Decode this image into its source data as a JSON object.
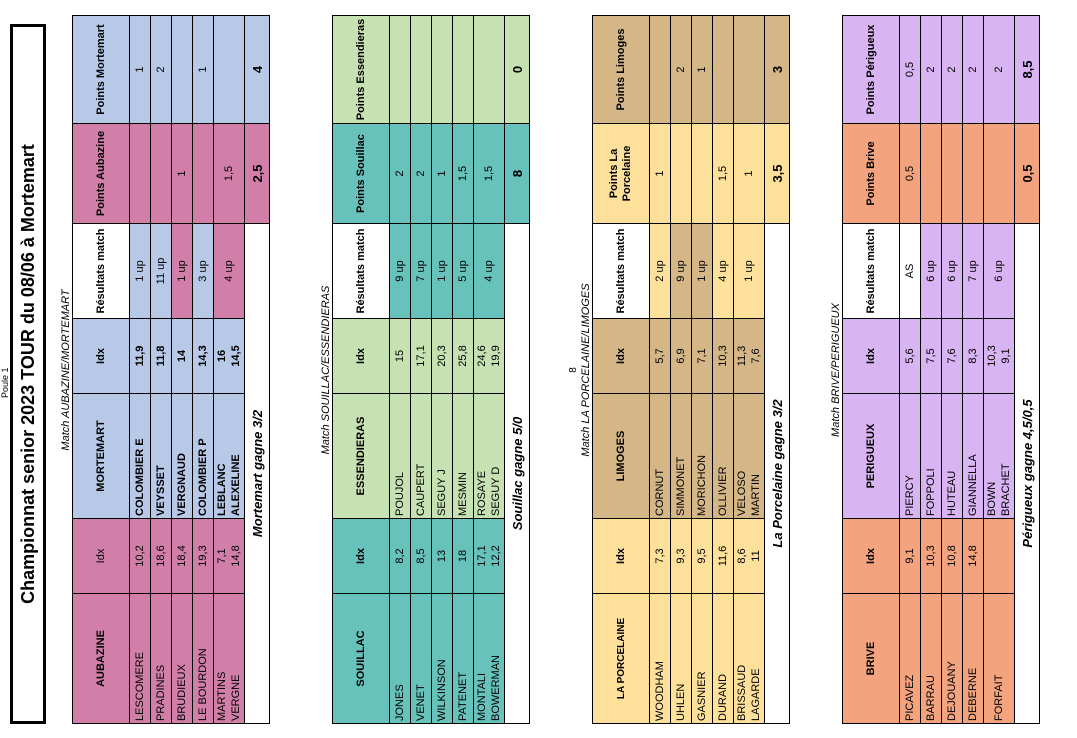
{
  "page": {
    "header_note": "Poule 1",
    "title": "Championnat senior 2023   TOUR  du 08/06 à Mortemart",
    "separator": "8",
    "colors": {
      "pink": "#d17fa8",
      "blue": "#b8c9e8",
      "teal": "#66c2bb",
      "green": "#c6e2b2",
      "yellow": "#fde19a",
      "tan": "#d4b687",
      "orange": "#f3a47f",
      "purple": "#d8b4f2"
    }
  },
  "match1": {
    "caption": "Match AUBAZINE/MORTEMART",
    "headers": [
      "AUBAZINE",
      "Idx",
      "MORTEMART",
      "Idx",
      "Résultats match",
      "Points Aubazine",
      "Points Mortemart"
    ],
    "rows": [
      {
        "p1": "LESCOMERE",
        "i1": "10,2",
        "p2": "COLOMBIER E",
        "i2": "11,9",
        "res": "1 up",
        "pt1": "",
        "pt2": "1"
      },
      {
        "p1": "PRADINES",
        "i1": "18,6",
        "p2": "VEYSSET",
        "i2": "11,8",
        "res": "11 up",
        "pt1": "",
        "pt2": "2"
      },
      {
        "p1": "BRUDIEUX",
        "i1": "18,4",
        "p2": "VERGNAUD",
        "i2": "14",
        "res": "1 up",
        "pt1": "1",
        "pt2": ""
      },
      {
        "p1": "LE BOURDON",
        "i1": "19,3",
        "p2": "COLOMBIER P",
        "i2": "14,3",
        "res": "3 up",
        "pt1": "",
        "pt2": "1"
      }
    ],
    "pair": {
      "p1a": "MARTINS",
      "p1b": "VERGNE",
      "i1a": "7,1",
      "i1b": "14,8",
      "p2a": "LEBLANC",
      "p2b": "ALEXELINE",
      "i2a": "16",
      "i2b": "14,5",
      "res": "4 up",
      "pt1": "1,5",
      "pt2": ""
    },
    "result": "Mortemart gagne 3/2",
    "total1": "2,5",
    "total2": "4"
  },
  "match2": {
    "caption": "Match SOUILLAC/ESSENDIERAS",
    "headers": [
      "SOUILLAC",
      "Idx",
      "ESSENDIERAS",
      "Idx",
      "Résultats match",
      "Points Souillac",
      "Points Essendieras"
    ],
    "rows": [
      {
        "p1": "JONES",
        "i1": "8,2",
        "p2": "POUJOL",
        "i2": "15",
        "res": "9 up",
        "pt1": "2",
        "pt2": ""
      },
      {
        "p1": "VENET",
        "i1": "8,5",
        "p2": "CAUPERT",
        "i2": "17,1",
        "res": "7 up",
        "pt1": "2",
        "pt2": ""
      },
      {
        "p1": "WILKINSON",
        "i1": "13",
        "p2": "SEGUY J",
        "i2": "20,3",
        "res": "1 up",
        "pt1": "1",
        "pt2": ""
      },
      {
        "p1": "PATENET",
        "i1": "18",
        "p2": "MESMIN",
        "i2": "25,8",
        "res": "5 up",
        "pt1": "1,5",
        "pt2": ""
      }
    ],
    "pair": {
      "p1a": "MONTALI",
      "p1b": "BOWERMAN",
      "i1a": "17,1",
      "i1b": "12,2",
      "p2a": "ROSAYE",
      "p2b": "SEGUY D",
      "i2a": "24,6",
      "i2b": "19,9",
      "res": "4 up",
      "pt1": "1,5",
      "pt2": ""
    },
    "result": "Souillac gagne 5/0",
    "total1": "8",
    "total2": "0"
  },
  "match3": {
    "caption": "Match LA PORCELAINE/LIMOGES",
    "headers": [
      "LA PORCELAINE",
      "Idx",
      "LIMOGES",
      "Idx",
      "Résultats match",
      "Points La Porcelaine",
      "Points Limoges"
    ],
    "rows": [
      {
        "p1": "WOODHAM",
        "i1": "7,3",
        "p2": "CORNUT",
        "i2": "5,7",
        "res": "2 up",
        "pt1": "1",
        "pt2": ""
      },
      {
        "p1": "UHLEN",
        "i1": "9,3",
        "p2": "SIMMONET",
        "i2": "6,9",
        "res": "9 up",
        "pt1": "",
        "pt2": "2"
      },
      {
        "p1": "GASNIER",
        "i1": "9,5",
        "p2": "MORICHON",
        "i2": "7,1",
        "res": "1 up",
        "pt1": "",
        "pt2": "1"
      },
      {
        "p1": "DURAND",
        "i1": "11,6",
        "p2": "OLLIVIER",
        "i2": "10,3",
        "res": "4 up",
        "pt1": "1,5",
        "pt2": ""
      }
    ],
    "pair": {
      "p1a": "BRISSAUD",
      "p1b": "LAGARDE",
      "i1a": "8,6",
      "i1b": "11",
      "p2a": "VELOSO",
      "p2b": "MARTIN",
      "i2a": "11,3",
      "i2b": "7,6",
      "res": "1 up",
      "pt1": "1",
      "pt2": ""
    },
    "result": "La Porcelaine gagne 3/2",
    "total1": "3,5",
    "total2": "3"
  },
  "match4": {
    "caption": "Match BRIVE/PERIGUEUX",
    "headers": [
      "BRIVE",
      "Idx",
      "PERIGUEUX",
      "Idx",
      "Résultats match",
      "Points  Brive",
      "Points Périgueux"
    ],
    "rows": [
      {
        "p1": "PICAVEZ",
        "i1": "9,1",
        "p2": "PIERCY",
        "i2": "5,6",
        "res": "AS",
        "pt1": "0,5",
        "pt2": "0,5"
      },
      {
        "p1": "BARRAU",
        "i1": "10,3",
        "p2": "FOPPOLI",
        "i2": "7,5",
        "res": "6 up",
        "pt1": "",
        "pt2": "2"
      },
      {
        "p1": "DEJOUANY",
        "i1": "10,8",
        "p2": "HUTEAU",
        "i2": "7,6",
        "res": "6 up",
        "pt1": "",
        "pt2": "2"
      },
      {
        "p1": "DEBERNE",
        "i1": "14,8",
        "p2": "GIANNELLA",
        "i2": "8,3",
        "res": "7 up",
        "pt1": "",
        "pt2": "2"
      }
    ],
    "pair": {
      "p1a": "FORFAIT",
      "p1b": "",
      "i1a": "",
      "i1b": "",
      "p2a": "BOWN",
      "p2b": "BRACHET",
      "i2a": "10,3",
      "i2b": "9,1",
      "res": "6 up",
      "pt1": "",
      "pt2": "2"
    },
    "result": "Périgueux gagne 4,5/0,5",
    "total1": "0,5",
    "total2": "8,5"
  }
}
